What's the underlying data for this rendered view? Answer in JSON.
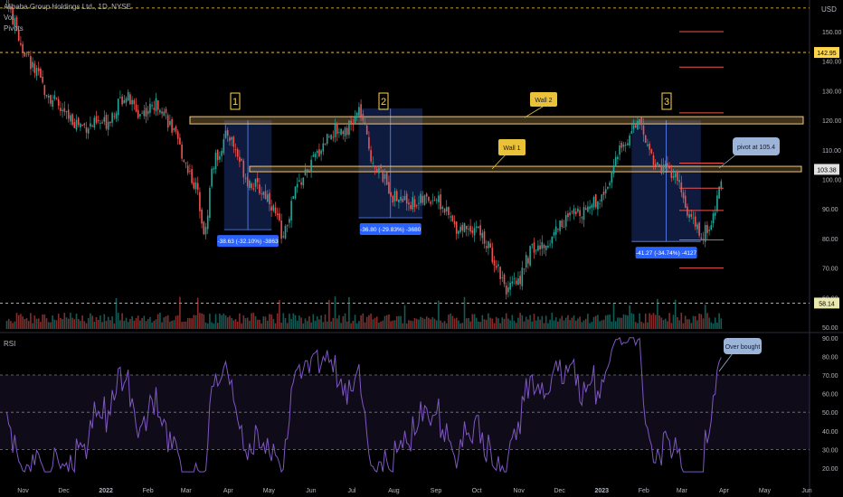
{
  "header": {
    "title": "Alibaba Group Holdings Ltd., 1D, NYSE",
    "vol": "Vol",
    "pivots": "Pivots",
    "currency": "USD"
  },
  "rsi_label": "RSI",
  "chart_data": [
    {
      "type": "candlestick",
      "title": "Alibaba Group Holdings Ltd., 1D, NYSE",
      "ylabel": "USD",
      "ylim": [
        45,
        158
      ],
      "yticks": [
        "150.00",
        "140.00",
        "130.00",
        "120.00",
        "110.00",
        "100.00",
        "90.00",
        "80.00",
        "70.00",
        "60.00",
        "50.00"
      ],
      "xticks": [
        "Nov",
        "Dec",
        "2022",
        "Feb",
        "Mar",
        "Apr",
        "May",
        "Jun",
        "Jul",
        "Aug",
        "Sep",
        "Oct",
        "Nov",
        "Dec",
        "2023",
        "Feb",
        "Mar",
        "Apr",
        "May",
        "Jun"
      ],
      "x_range": [
        "2021-10-15",
        "2023-06-01"
      ],
      "price_badges": [
        {
          "value": "103.38",
          "color": "#e0e0e0"
        },
        {
          "value": "58.14",
          "color": "#e8e8b0"
        },
        {
          "value": "142.95",
          "color": "#ffd54a"
        }
      ],
      "series_close": [
        [
          "2021-10-20",
          160
        ],
        [
          "2021-11-01",
          144
        ],
        [
          "2021-11-15",
          132
        ],
        [
          "2021-12-01",
          122
        ],
        [
          "2021-12-15",
          118
        ],
        [
          "2022-01-01",
          119
        ],
        [
          "2022-01-15",
          129
        ],
        [
          "2022-01-25",
          122
        ],
        [
          "2022-02-10",
          126
        ],
        [
          "2022-02-25",
          110
        ],
        [
          "2022-03-10",
          95
        ],
        [
          "2022-03-15",
          80
        ],
        [
          "2022-03-20",
          104
        ],
        [
          "2022-04-01",
          116
        ],
        [
          "2022-04-15",
          100
        ],
        [
          "2022-05-01",
          94
        ],
        [
          "2022-05-12",
          80
        ],
        [
          "2022-05-20",
          96
        ],
        [
          "2022-06-01",
          105
        ],
        [
          "2022-06-15",
          116
        ],
        [
          "2022-07-01",
          118
        ],
        [
          "2022-07-07",
          124
        ],
        [
          "2022-07-15",
          108
        ],
        [
          "2022-08-01",
          94
        ],
        [
          "2022-08-15",
          92
        ],
        [
          "2022-09-01",
          94
        ],
        [
          "2022-09-15",
          84
        ],
        [
          "2022-10-01",
          84
        ],
        [
          "2022-10-15",
          72
        ],
        [
          "2022-10-24",
          62
        ],
        [
          "2022-11-01",
          66
        ],
        [
          "2022-11-10",
          76
        ],
        [
          "2022-11-20",
          77
        ],
        [
          "2022-12-01",
          85
        ],
        [
          "2022-12-15",
          89
        ],
        [
          "2023-01-01",
          94
        ],
        [
          "2023-01-15",
          110
        ],
        [
          "2023-01-27",
          120
        ],
        [
          "2023-02-10",
          105
        ],
        [
          "2023-02-25",
          101
        ],
        [
          "2023-03-05",
          89
        ],
        [
          "2023-03-15",
          80
        ],
        [
          "2023-03-24",
          86
        ],
        [
          "2023-03-31",
          103.38
        ]
      ],
      "lines": [
        {
          "name": "Wall 2",
          "y": 120
        },
        {
          "name": "Wall 1",
          "y": 103.5
        },
        {
          "name": "pivot at 105.4",
          "y": 105.4
        }
      ],
      "pivot_levels": [
        150,
        138,
        122.5,
        105.5,
        97,
        89.5,
        79.5,
        70
      ],
      "annotations": [
        {
          "label": "1",
          "text": "-38.63 (-32.10%) -3863",
          "from": "2022-03-29",
          "to": "2022-05-03",
          "y_top": 120,
          "y_bottom": 83
        },
        {
          "label": "2",
          "text": "-36.80 (-29.83%) -3680",
          "from": "2022-07-06",
          "to": "2022-08-22",
          "y_top": 124,
          "y_bottom": 87
        },
        {
          "label": "3",
          "text": "-41.27 (-34.74%) -4127",
          "from": "2023-01-23",
          "to": "2023-03-15",
          "y_top": 120,
          "y_bottom": 79
        }
      ],
      "callouts": [
        "Wall 2",
        "Wall 1",
        "pivot at 105.4",
        "Over bought"
      ]
    },
    {
      "type": "line",
      "title": "RSI",
      "ylim": [
        15,
        95
      ],
      "yticks": [
        "90.00",
        "80.00",
        "70.00",
        "60.00",
        "50.00",
        "40.00",
        "30.00",
        "20.00"
      ],
      "band": [
        30,
        70
      ],
      "mid": 50,
      "last_value": 70,
      "color": "#7e57c2"
    }
  ]
}
